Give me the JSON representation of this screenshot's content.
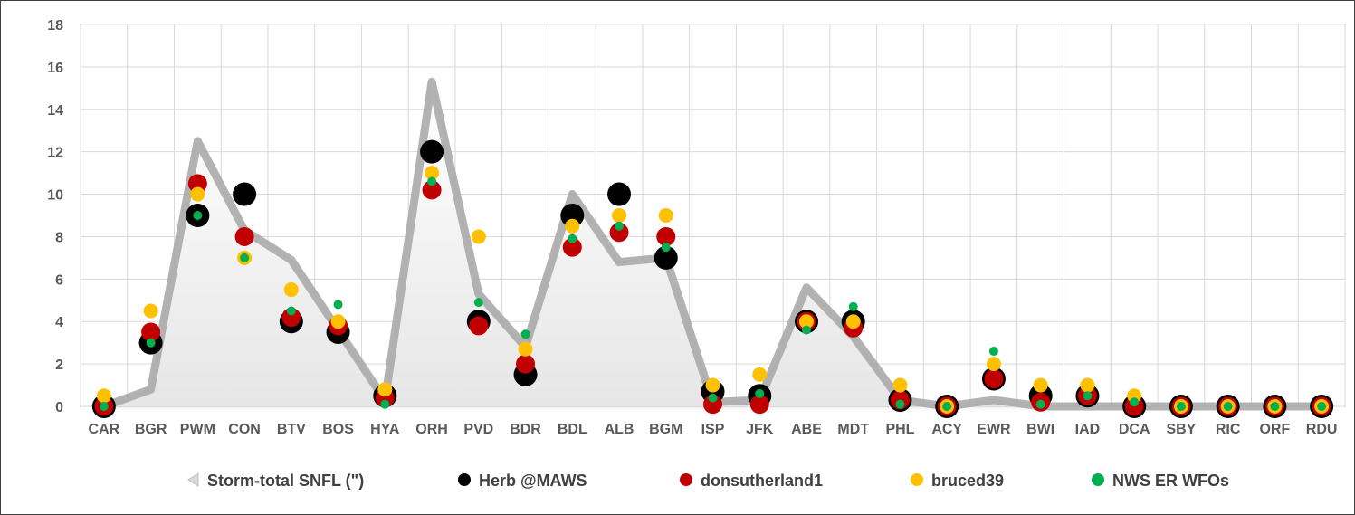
{
  "chart_data": {
    "type": "scatter",
    "categories": [
      "CAR",
      "BGR",
      "PWM",
      "CON",
      "BTV",
      "BOS",
      "HYA",
      "ORH",
      "PVD",
      "BDR",
      "BDL",
      "ALB",
      "BGM",
      "ISP",
      "JFK",
      "ABE",
      "MDT",
      "PHL",
      "ACY",
      "EWR",
      "BWI",
      "IAD",
      "DCA",
      "SBY",
      "RIC",
      "ORF",
      "RDU"
    ],
    "ylim": [
      0,
      18
    ],
    "yticks": [
      0,
      2,
      4,
      6,
      8,
      10,
      12,
      14,
      16,
      18
    ],
    "grid": true,
    "legend_position": "bottom",
    "series": [
      {
        "name": "Storm-total SNFL (\")",
        "type": "area",
        "color": "#a6a6a6",
        "values": [
          0.0,
          0.8,
          12.5,
          8.3,
          6.9,
          3.6,
          0.3,
          15.3,
          5.3,
          2.8,
          10.0,
          6.8,
          7.0,
          0.2,
          0.3,
          5.6,
          3.3,
          0.3,
          0.0,
          0.3,
          0.0,
          0.0,
          0.0,
          0.0,
          0.0,
          0.0,
          0.0
        ]
      },
      {
        "name": "Herb @MAWS",
        "type": "scatter",
        "color": "#000000",
        "values": [
          0,
          3,
          9,
          10,
          4,
          3.5,
          0.5,
          12,
          4,
          1.5,
          9,
          10,
          7,
          0.7,
          0.5,
          4,
          4,
          0.3,
          0,
          1.3,
          0.5,
          0.5,
          0,
          0,
          0,
          0,
          0
        ]
      },
      {
        "name": "donsutherland1",
        "type": "scatter",
        "color": "#c00000",
        "values": [
          0,
          3.5,
          10.5,
          8,
          4.2,
          3.8,
          0.4,
          10.2,
          3.8,
          2,
          7.5,
          8.2,
          8,
          0.1,
          0.1,
          4,
          3.7,
          0.3,
          0,
          1.3,
          0.2,
          0.5,
          0,
          0,
          0,
          0,
          0
        ]
      },
      {
        "name": "bruced39",
        "type": "scatter",
        "color": "#ffc000",
        "values": [
          0.5,
          4.5,
          10,
          7,
          5.5,
          4,
          0.8,
          11,
          8,
          2.7,
          8.5,
          9,
          9,
          1,
          1.5,
          4,
          4,
          1,
          0,
          2,
          1,
          1,
          0.5,
          0,
          0,
          0,
          0
        ]
      },
      {
        "name": "NWS ER WFOs",
        "type": "scatter",
        "color": "#00b050",
        "values": [
          0,
          3,
          9,
          7,
          4.5,
          4.8,
          0.1,
          10.6,
          4.9,
          3.4,
          7.9,
          8.5,
          7.5,
          0.4,
          0.6,
          3.6,
          4.7,
          0.1,
          0,
          2.6,
          0.1,
          0.5,
          0.2,
          0,
          0,
          0,
          0
        ]
      }
    ]
  }
}
